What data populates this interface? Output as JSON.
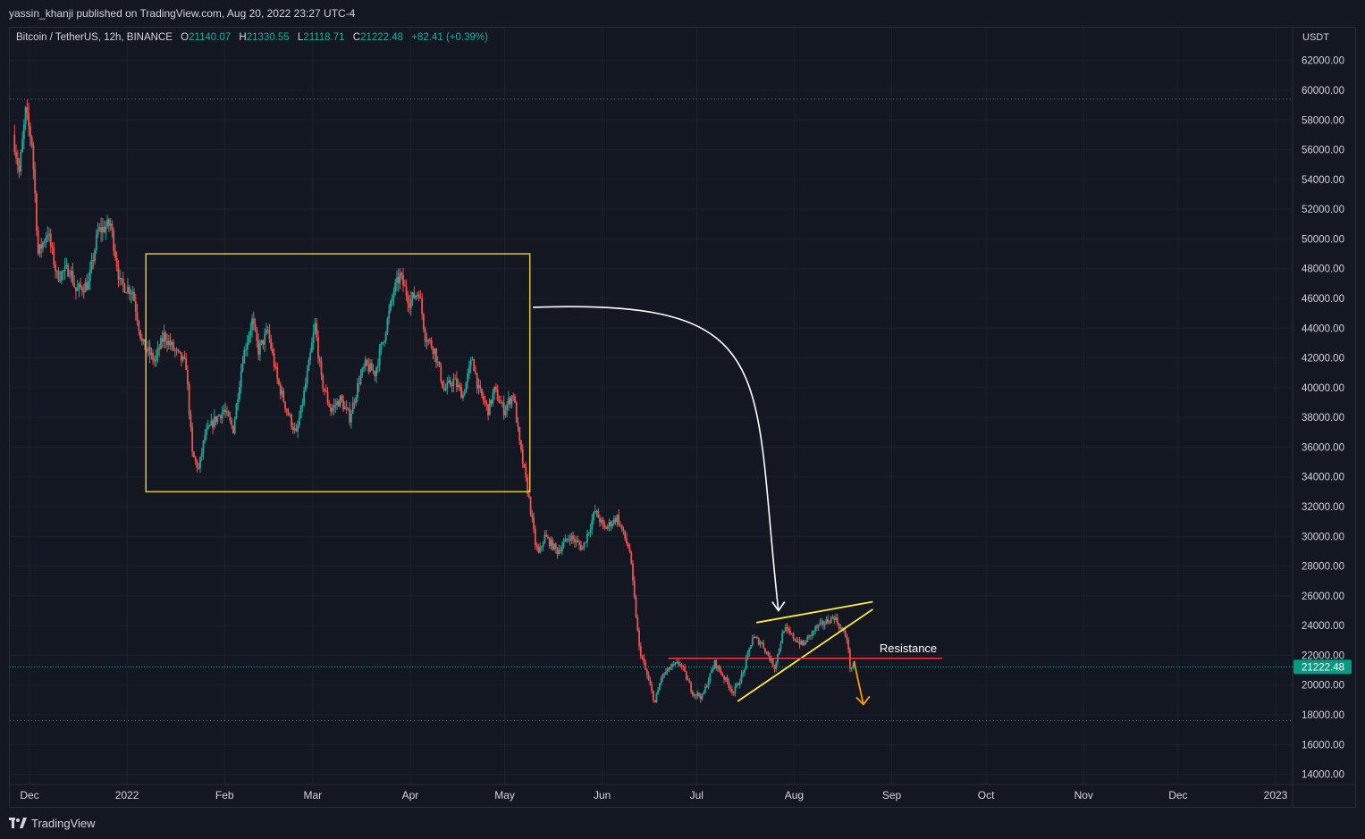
{
  "header": {
    "attribution": "yassin_khanji published on TradingView.com, Aug 20, 2022 23:27 UTC-4"
  },
  "legend": {
    "symbol": "Bitcoin / TetherUS, 12h, BINANCE",
    "open_label": "O",
    "open": "21140.07",
    "high_label": "H",
    "high": "21330.55",
    "low_label": "L",
    "low": "21118.71",
    "close_label": "C",
    "close": "21222.48",
    "change": "+82.41 (+0.39%)"
  },
  "footer": {
    "brand": "TradingView"
  },
  "colors": {
    "background": "#131722",
    "grid": "#1e222d",
    "up": "#26a69a",
    "down": "#ef5350",
    "range_box": "#e0c341",
    "wedge": "#ffeb3b",
    "resistance": "#f23645",
    "breakdown_arrow": "#ff9800",
    "flow_arrow": "#ffffff",
    "price_badge": "#089981"
  },
  "chart_data": {
    "type": "candlestick",
    "title": "",
    "xlabel": "",
    "ylabel": "USDT",
    "interval": "12h",
    "exchange": "BINANCE",
    "ylim": [
      14000,
      62000
    ],
    "y_ticks": [
      "14000.00",
      "16000.00",
      "18000.00",
      "20000.00",
      "22000.00",
      "24000.00",
      "26000.00",
      "28000.00",
      "30000.00",
      "32000.00",
      "34000.00",
      "36000.00",
      "38000.00",
      "40000.00",
      "42000.00",
      "44000.00",
      "46000.00",
      "48000.00",
      "50000.00",
      "52000.00",
      "54000.00",
      "56000.00",
      "58000.00",
      "60000.00",
      "62000.00"
    ],
    "y_tick_start": 14000,
    "y_tick_step": 2000,
    "x_ticks": [
      {
        "label": "Dec",
        "date": "2021-12-01"
      },
      {
        "label": "2022",
        "date": "2022-01-01"
      },
      {
        "label": "Feb",
        "date": "2022-02-01"
      },
      {
        "label": "Mar",
        "date": "2022-03-01"
      },
      {
        "label": "Apr",
        "date": "2022-04-01"
      },
      {
        "label": "May",
        "date": "2022-05-01"
      },
      {
        "label": "Jun",
        "date": "2022-06-01"
      },
      {
        "label": "Jul",
        "date": "2022-07-01"
      },
      {
        "label": "Aug",
        "date": "2022-08-01"
      },
      {
        "label": "Sep",
        "date": "2022-09-01"
      },
      {
        "label": "Oct",
        "date": "2022-10-01"
      },
      {
        "label": "Nov",
        "date": "2022-11-01"
      },
      {
        "label": "Dec",
        "date": "2022-12-01"
      },
      {
        "label": "2023",
        "date": "2023-01-01"
      }
    ],
    "x_range": [
      "2021-11-25",
      "2023-01-08"
    ],
    "last_price": "21222.48",
    "high_line": 59400,
    "low_line": 17600,
    "price_path": [
      {
        "date": "2021-11-26",
        "price": 57000
      },
      {
        "date": "2021-11-28",
        "price": 54500
      },
      {
        "date": "2021-11-30",
        "price": 58500
      },
      {
        "date": "2021-12-02",
        "price": 56500
      },
      {
        "date": "2021-12-03",
        "price": 53000
      },
      {
        "date": "2021-12-04",
        "price": 49000
      },
      {
        "date": "2021-12-07",
        "price": 50500
      },
      {
        "date": "2021-12-10",
        "price": 47500
      },
      {
        "date": "2021-12-14",
        "price": 48000
      },
      {
        "date": "2021-12-16",
        "price": 46500
      },
      {
        "date": "2021-12-20",
        "price": 47000
      },
      {
        "date": "2021-12-23",
        "price": 50500
      },
      {
        "date": "2021-12-27",
        "price": 51000
      },
      {
        "date": "2021-12-30",
        "price": 47000
      },
      {
        "date": "2022-01-03",
        "price": 46500
      },
      {
        "date": "2022-01-06",
        "price": 43000
      },
      {
        "date": "2022-01-10",
        "price": 41800
      },
      {
        "date": "2022-01-13",
        "price": 43500
      },
      {
        "date": "2022-01-17",
        "price": 42300
      },
      {
        "date": "2022-01-20",
        "price": 41500
      },
      {
        "date": "2022-01-22",
        "price": 35500
      },
      {
        "date": "2022-01-24",
        "price": 34500
      },
      {
        "date": "2022-01-26",
        "price": 36800
      },
      {
        "date": "2022-01-29",
        "price": 37800
      },
      {
        "date": "2022-02-01",
        "price": 38500
      },
      {
        "date": "2022-02-04",
        "price": 37200
      },
      {
        "date": "2022-02-07",
        "price": 42000
      },
      {
        "date": "2022-02-10",
        "price": 44500
      },
      {
        "date": "2022-02-12",
        "price": 42500
      },
      {
        "date": "2022-02-15",
        "price": 43800
      },
      {
        "date": "2022-02-18",
        "price": 40500
      },
      {
        "date": "2022-02-21",
        "price": 38500
      },
      {
        "date": "2022-02-24",
        "price": 36800
      },
      {
        "date": "2022-02-26",
        "price": 39000
      },
      {
        "date": "2022-02-28",
        "price": 41500
      },
      {
        "date": "2022-03-02",
        "price": 44200
      },
      {
        "date": "2022-03-04",
        "price": 40500
      },
      {
        "date": "2022-03-07",
        "price": 38500
      },
      {
        "date": "2022-03-10",
        "price": 39200
      },
      {
        "date": "2022-03-13",
        "price": 38000
      },
      {
        "date": "2022-03-16",
        "price": 40500
      },
      {
        "date": "2022-03-18",
        "price": 41500
      },
      {
        "date": "2022-03-21",
        "price": 41000
      },
      {
        "date": "2022-03-24",
        "price": 43500
      },
      {
        "date": "2022-03-27",
        "price": 46500
      },
      {
        "date": "2022-03-29",
        "price": 47500
      },
      {
        "date": "2022-04-01",
        "price": 45800
      },
      {
        "date": "2022-04-04",
        "price": 46500
      },
      {
        "date": "2022-04-06",
        "price": 43500
      },
      {
        "date": "2022-04-09",
        "price": 42500
      },
      {
        "date": "2022-04-12",
        "price": 39800
      },
      {
        "date": "2022-04-15",
        "price": 40500
      },
      {
        "date": "2022-04-18",
        "price": 39500
      },
      {
        "date": "2022-04-21",
        "price": 42000
      },
      {
        "date": "2022-04-23",
        "price": 39800
      },
      {
        "date": "2022-04-26",
        "price": 38500
      },
      {
        "date": "2022-04-28",
        "price": 39800
      },
      {
        "date": "2022-05-01",
        "price": 38500
      },
      {
        "date": "2022-05-04",
        "price": 39600
      },
      {
        "date": "2022-05-06",
        "price": 36200
      },
      {
        "date": "2022-05-09",
        "price": 32500
      },
      {
        "date": "2022-05-11",
        "price": 29500
      },
      {
        "date": "2022-05-12",
        "price": 28800
      },
      {
        "date": "2022-05-14",
        "price": 30000
      },
      {
        "date": "2022-05-18",
        "price": 29000
      },
      {
        "date": "2022-05-22",
        "price": 30000
      },
      {
        "date": "2022-05-26",
        "price": 29200
      },
      {
        "date": "2022-05-30",
        "price": 31700
      },
      {
        "date": "2022-06-02",
        "price": 30500
      },
      {
        "date": "2022-06-06",
        "price": 31300
      },
      {
        "date": "2022-06-10",
        "price": 29000
      },
      {
        "date": "2022-06-13",
        "price": 22500
      },
      {
        "date": "2022-06-15",
        "price": 21000
      },
      {
        "date": "2022-06-18",
        "price": 18800
      },
      {
        "date": "2022-06-20",
        "price": 20500
      },
      {
        "date": "2022-06-23",
        "price": 21200
      },
      {
        "date": "2022-06-26",
        "price": 21500
      },
      {
        "date": "2022-06-30",
        "price": 19500
      },
      {
        "date": "2022-07-03",
        "price": 19200
      },
      {
        "date": "2022-07-07",
        "price": 21500
      },
      {
        "date": "2022-07-10",
        "price": 20500
      },
      {
        "date": "2022-07-13",
        "price": 19500
      },
      {
        "date": "2022-07-16",
        "price": 20800
      },
      {
        "date": "2022-07-19",
        "price": 23200
      },
      {
        "date": "2022-07-22",
        "price": 22800
      },
      {
        "date": "2022-07-26",
        "price": 21200
      },
      {
        "date": "2022-07-29",
        "price": 23800
      },
      {
        "date": "2022-08-01",
        "price": 23200
      },
      {
        "date": "2022-08-04",
        "price": 22700
      },
      {
        "date": "2022-08-08",
        "price": 23800
      },
      {
        "date": "2022-08-11",
        "price": 24200
      },
      {
        "date": "2022-08-14",
        "price": 24600
      },
      {
        "date": "2022-08-16",
        "price": 23800
      },
      {
        "date": "2022-08-18",
        "price": 23200
      },
      {
        "date": "2022-08-19",
        "price": 21200
      },
      {
        "date": "2022-08-20",
        "price": 21222
      }
    ],
    "annotations": {
      "range_box": {
        "date_start": "2022-01-07",
        "date_end": "2022-05-09",
        "price_low": 33000,
        "price_high": 49000
      },
      "flow_arrow": {
        "date_start": "2022-05-10",
        "price_start": 45400,
        "date_end": "2022-07-27",
        "price_end": 25000
      },
      "wedge_upper": [
        {
          "date": "2022-07-20",
          "price": 24200
        },
        {
          "date": "2022-08-26",
          "price": 25600
        }
      ],
      "wedge_lower": [
        {
          "date": "2022-07-14",
          "price": 18900
        },
        {
          "date": "2022-08-26",
          "price": 25100
        }
      ],
      "resistance": {
        "price": 21800,
        "date_start": "2022-06-22",
        "date_end": "2022-09-17",
        "label": "Resistance"
      },
      "breakdown_arrow": {
        "date_start": "2022-08-20",
        "price_start": 21600,
        "date_end": "2022-08-23",
        "price_end": 18700
      }
    }
  }
}
